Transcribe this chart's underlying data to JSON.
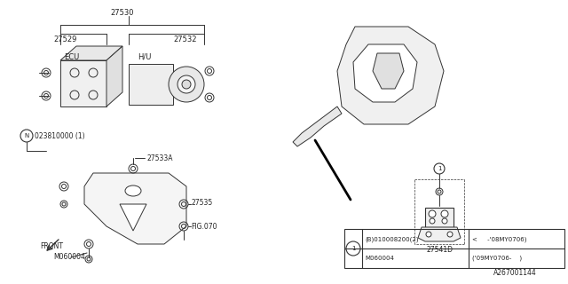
{
  "bg_color": "#ffffff",
  "line_color": "#333333",
  "ref_label": "A267001144",
  "table_row1_col1": "(B)010008200(2)",
  "table_row1_col2": "<     -’08MY0706)",
  "table_row2_col1": "M060004",
  "table_row2_col2": "(’09MY0706-    )"
}
